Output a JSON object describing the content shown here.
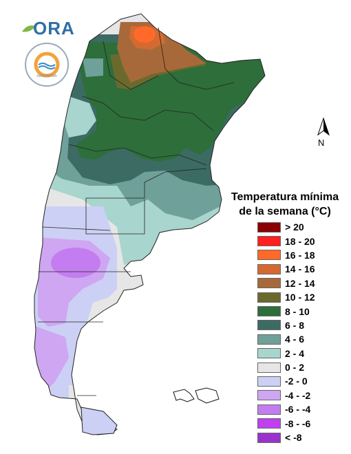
{
  "logo": {
    "text": "ORA"
  },
  "seal": {
    "text": "ARGENTINA"
  },
  "north_arrow": {
    "label": "N"
  },
  "legend": {
    "title_line1": "Temperatura mínima",
    "title_line2": "de la semana (°C)",
    "items": [
      {
        "label": "> 20",
        "color": "#8b0000"
      },
      {
        "label": "18 - 20",
        "color": "#ff2020"
      },
      {
        "label": "16 - 18",
        "color": "#ff6a2a"
      },
      {
        "label": "14 - 16",
        "color": "#d46a32"
      },
      {
        "label": "12 - 14",
        "color": "#a8693a"
      },
      {
        "label": "10 - 12",
        "color": "#6b6a2d"
      },
      {
        "label": "8 - 10",
        "color": "#2d6e3a"
      },
      {
        "label": "6 - 8",
        "color": "#3c6b64"
      },
      {
        "label": "4 - 6",
        "color": "#6fa09a"
      },
      {
        "label": "2 - 4",
        "color": "#a8d5cd"
      },
      {
        "label": "0 - 2",
        "color": "#e6e6e6"
      },
      {
        "label": "-2 - 0",
        "color": "#ccd0f4"
      },
      {
        "label": "-4 - -2",
        "color": "#cfa6f2"
      },
      {
        "label": "-6 - -4",
        "color": "#c37df0"
      },
      {
        "label": "-8 - -6",
        "color": "#c040f0"
      },
      {
        "label": "< -8",
        "color": "#9933cc"
      }
    ]
  }
}
